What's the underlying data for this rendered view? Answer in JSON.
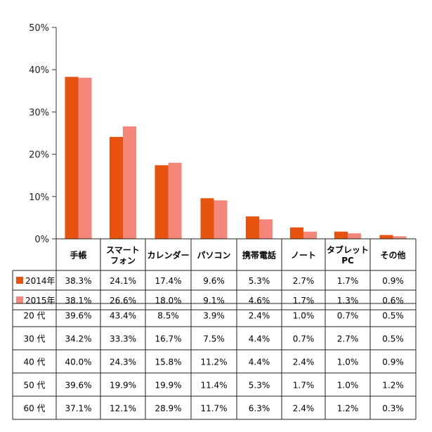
{
  "chart_data": {
    "type": "bar",
    "categories": [
      [
        "手帳"
      ],
      [
        "スマート",
        "フォン"
      ],
      [
        "カレンダー"
      ],
      [
        "パソコン"
      ],
      [
        "携帯電話"
      ],
      [
        "ノート"
      ],
      [
        "タブレット",
        "PC"
      ],
      [
        "その他"
      ]
    ],
    "ylim": [
      0,
      50
    ],
    "yticks": [
      "0%",
      "10%",
      "20%",
      "30%",
      "40%",
      "50%"
    ],
    "grid": false,
    "series": [
      {
        "name": "2014年",
        "color": "#e8520f",
        "values": [
          38.3,
          24.1,
          17.4,
          9.6,
          5.3,
          2.7,
          1.7,
          0.9
        ],
        "labels": [
          "38.3%",
          "24.1%",
          "17.4%",
          "9.6%",
          "5.3%",
          "2.7%",
          "1.7%",
          "0.9%"
        ]
      },
      {
        "name": "2015年",
        "color": "#f2877a",
        "values": [
          38.1,
          26.6,
          18.0,
          9.1,
          4.6,
          1.7,
          1.3,
          0.6
        ],
        "labels": [
          "38.1%",
          "26.6%",
          "18.0%",
          "9.1%",
          "4.6%",
          "1.7%",
          "1.3%",
          "0.6%"
        ]
      }
    ],
    "age_table": [
      {
        "name": "20 代",
        "labels": [
          "39.6%",
          "43.4%",
          "8.5%",
          "3.9%",
          "2.4%",
          "1.0%",
          "0.7%",
          "0.5%"
        ]
      },
      {
        "name": "30 代",
        "labels": [
          "34.2%",
          "33.3%",
          "16.7%",
          "7.5%",
          "4.4%",
          "0.7%",
          "2.7%",
          "0.5%"
        ]
      },
      {
        "name": "40 代",
        "labels": [
          "40.0%",
          "24.3%",
          "15.8%",
          "11.2%",
          "4.4%",
          "2.4%",
          "1.0%",
          "0.9%"
        ]
      },
      {
        "name": "50 代",
        "labels": [
          "39.6%",
          "19.9%",
          "19.9%",
          "11.4%",
          "5.3%",
          "1.7%",
          "1.0%",
          "1.2%"
        ]
      },
      {
        "name": "60 代",
        "labels": [
          "37.1%",
          "12.1%",
          "28.9%",
          "11.7%",
          "6.3%",
          "2.4%",
          "1.2%",
          "0.3%"
        ]
      }
    ]
  }
}
